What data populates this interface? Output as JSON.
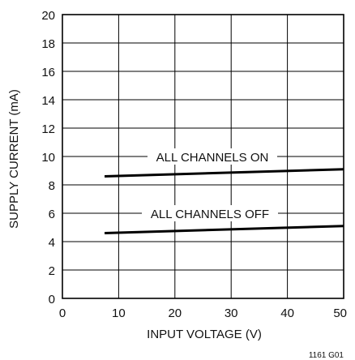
{
  "chart_data": {
    "type": "line",
    "title": "",
    "xlabel": "INPUT VOLTAGE (V)",
    "ylabel": "SUPPLY CURRENT (mA)",
    "xlim": [
      0,
      50
    ],
    "ylim": [
      0,
      20
    ],
    "xticks": [
      0,
      10,
      20,
      30,
      40,
      50
    ],
    "yticks": [
      0,
      2,
      4,
      6,
      8,
      10,
      12,
      14,
      16,
      18,
      20
    ],
    "grid": true,
    "series": [
      {
        "name": "ALL CHANNELS ON",
        "x": [
          7.5,
          50
        ],
        "y": [
          8.6,
          9.1
        ]
      },
      {
        "name": "ALL CHANNELS OFF",
        "x": [
          7.5,
          50
        ],
        "y": [
          4.6,
          5.1
        ]
      }
    ],
    "footnote": "1161 G01",
    "colors": {
      "line": "#000000",
      "grid": "#000000"
    }
  }
}
